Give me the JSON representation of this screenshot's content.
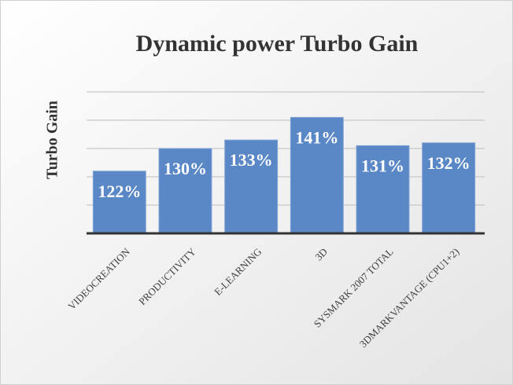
{
  "chart_data": {
    "type": "bar",
    "title": "Dynamic power Turbo Gain",
    "y_label": "Turbo Gain",
    "categories": [
      "VIDEOCREATION",
      "PRODUCTIVITY",
      "E-LEARNING",
      "3D",
      "SYSMARK 2007 TOTAL",
      "3DMARKVANTAGE (CPU1+2)"
    ],
    "values": [
      122,
      130,
      133,
      141,
      131,
      132
    ],
    "value_labels": [
      "122%",
      "130%",
      "133%",
      "141%",
      "131%",
      "132%"
    ],
    "color": "#5a87c6",
    "ylim": [
      100,
      150
    ],
    "yticks": [
      100,
      110,
      120,
      130,
      140,
      150
    ],
    "grid": true
  }
}
